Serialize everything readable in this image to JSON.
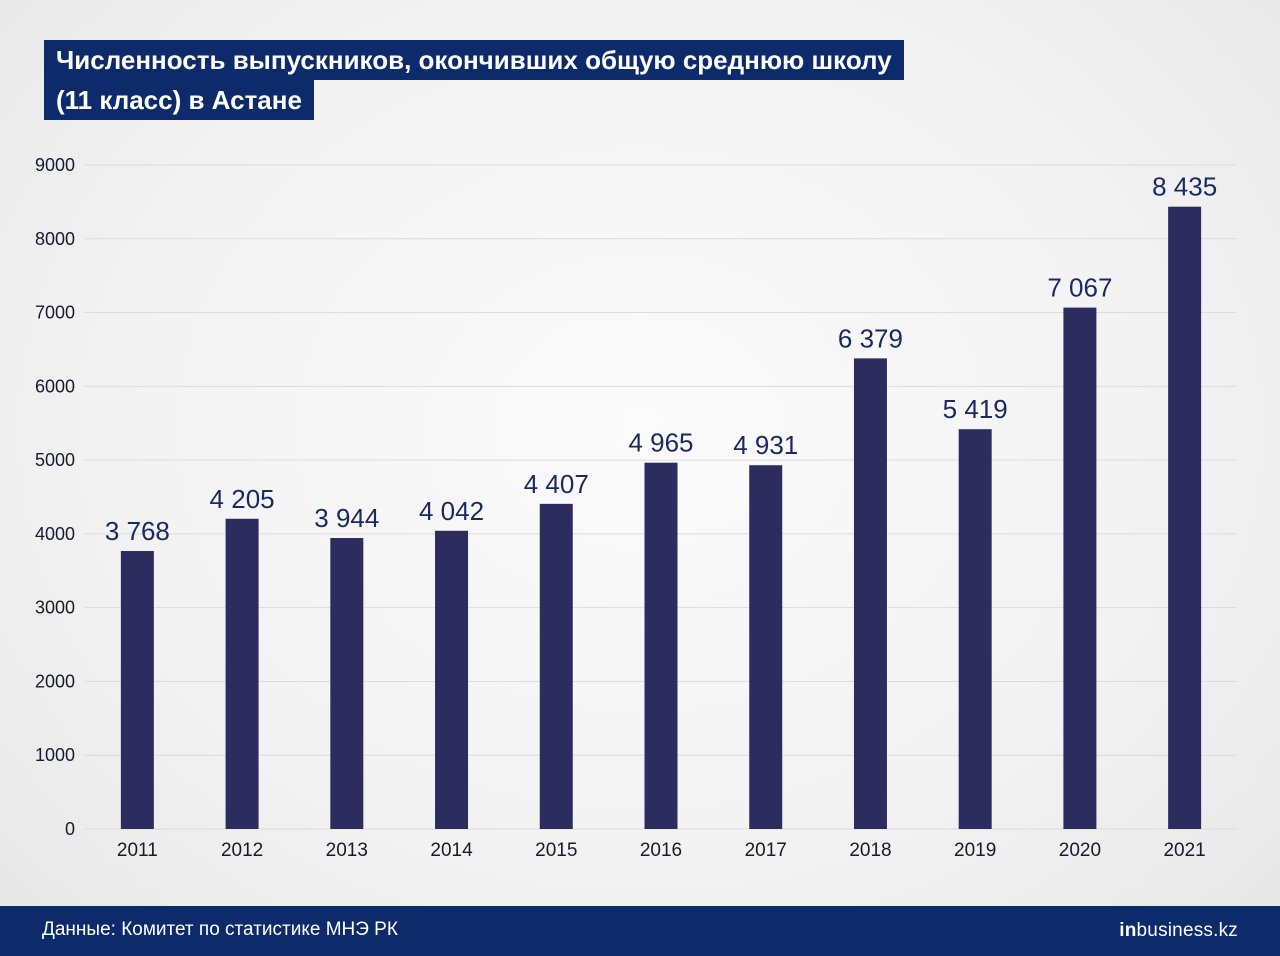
{
  "header": {
    "title_line1": "Численность выпускников, окончивших общую среднюю школу",
    "title_line2": "(11 класс) в Астане"
  },
  "footer": {
    "source": "Данные: Комитет по статистике МНЭ РК",
    "logo_in": "in",
    "logo_rest": "business.kz"
  },
  "colors": {
    "bar": "#2c2d5e",
    "label": "#1a2a5e",
    "grid": "#dcdcdc",
    "axis_text": "#1a1a2e"
  },
  "chart_data": {
    "type": "bar",
    "title": "Численность выпускников, окончивших общую среднюю школу (11 класс) в Астане",
    "categories": [
      "2011",
      "2012",
      "2013",
      "2014",
      "2015",
      "2016",
      "2017",
      "2018",
      "2019",
      "2020",
      "2021"
    ],
    "values": [
      3768,
      4205,
      3944,
      4042,
      4407,
      4965,
      4931,
      6379,
      5419,
      7067,
      8435
    ],
    "value_labels": [
      "3 768",
      "4 205",
      "3 944",
      "4 042",
      "4 407",
      "4 965",
      "4 931",
      "6 379",
      "5 419",
      "7 067",
      "8 435"
    ],
    "yticks": [
      "0",
      "1000",
      "2000",
      "3000",
      "4000",
      "5000",
      "6000",
      "7000",
      "8000",
      "9000"
    ],
    "ylim": [
      0,
      9000
    ],
    "grid": true,
    "xlabel": "",
    "ylabel": ""
  }
}
